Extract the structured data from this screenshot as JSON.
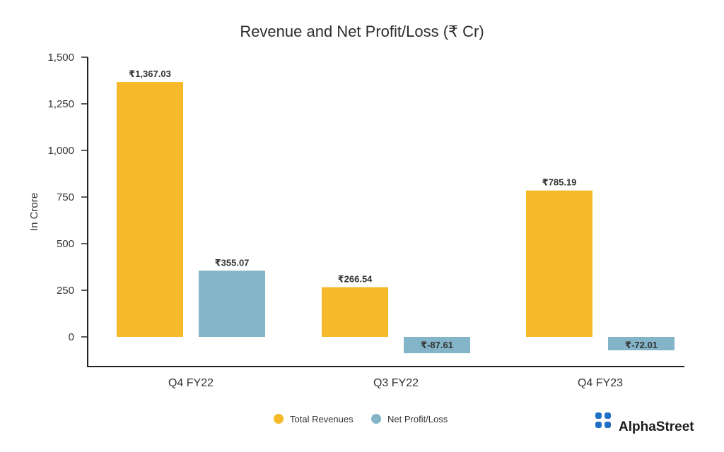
{
  "chart_data": {
    "type": "bar",
    "title": "Revenue and Net Profit/Loss (₹ Cr)",
    "xlabel": "",
    "ylabel": "In Crore",
    "ylim": [
      -160,
      1500
    ],
    "yticks": [
      0,
      250,
      500,
      750,
      1000,
      1250,
      1500
    ],
    "ytick_labels": [
      "0",
      "250",
      "500",
      "750",
      "1,000",
      "1,250",
      "1,500"
    ],
    "categories": [
      "Q4 FY22",
      "Q3 FY22",
      "Q4 FY23"
    ],
    "series": [
      {
        "name": "Total Revenues",
        "color": "#F5B929",
        "values": [
          1367.03,
          266.54,
          785.19
        ],
        "labels": [
          "₹1,367.03",
          "₹266.54",
          "₹785.19"
        ]
      },
      {
        "name": "Net Profit/Loss",
        "color": "#84B4C8",
        "values": [
          355.07,
          -87.61,
          -72.01
        ],
        "labels": [
          "₹355.07",
          "₹-87.61",
          "₹-72.01"
        ]
      }
    ],
    "legend_position": "bottom-center",
    "grid": false
  },
  "brand": {
    "name": "AlphaStreet",
    "icon": "alphastreet-logo-icon",
    "color": "#1F6FC5"
  }
}
